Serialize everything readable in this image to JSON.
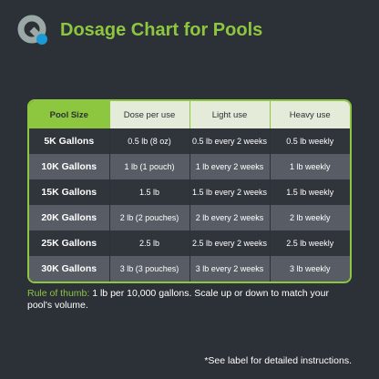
{
  "header": {
    "title": "Dosage Chart for Pools"
  },
  "table": {
    "columns": [
      "Pool Size",
      "Dose per use",
      "Light use",
      "Heavy use"
    ],
    "rows": [
      [
        "5K Gallons",
        "0.5 lb (8 oz)",
        "0.5 lb every 2 weeks",
        "0.5 lb weekly"
      ],
      [
        "10K Gallons",
        "1 lb (1 pouch)",
        "1 lb every 2 weeks",
        "1 lb weekly"
      ],
      [
        "15K Gallons",
        "1.5 lb",
        "1.5 lb every 2 weeks",
        "1.5 lb weekly"
      ],
      [
        "20K Gallons",
        "2 lb (2 pouches)",
        "2 lb every 2 weeks",
        "2 lb weekly"
      ],
      [
        "25K Gallons",
        "2.5 lb",
        "2.5 lb every 2 weeks",
        "2.5 lb weekly"
      ],
      [
        "30K Gallons",
        "3 lb (3 pouches)",
        "3 lb every 2 weeks",
        "3 lb weekly"
      ]
    ]
  },
  "note": {
    "label": "Rule of thumb:",
    "text": "1 lb per 10,000 gallons. Scale up or down to match your pool's volume."
  },
  "footer": "*See label for detailed instructions."
}
